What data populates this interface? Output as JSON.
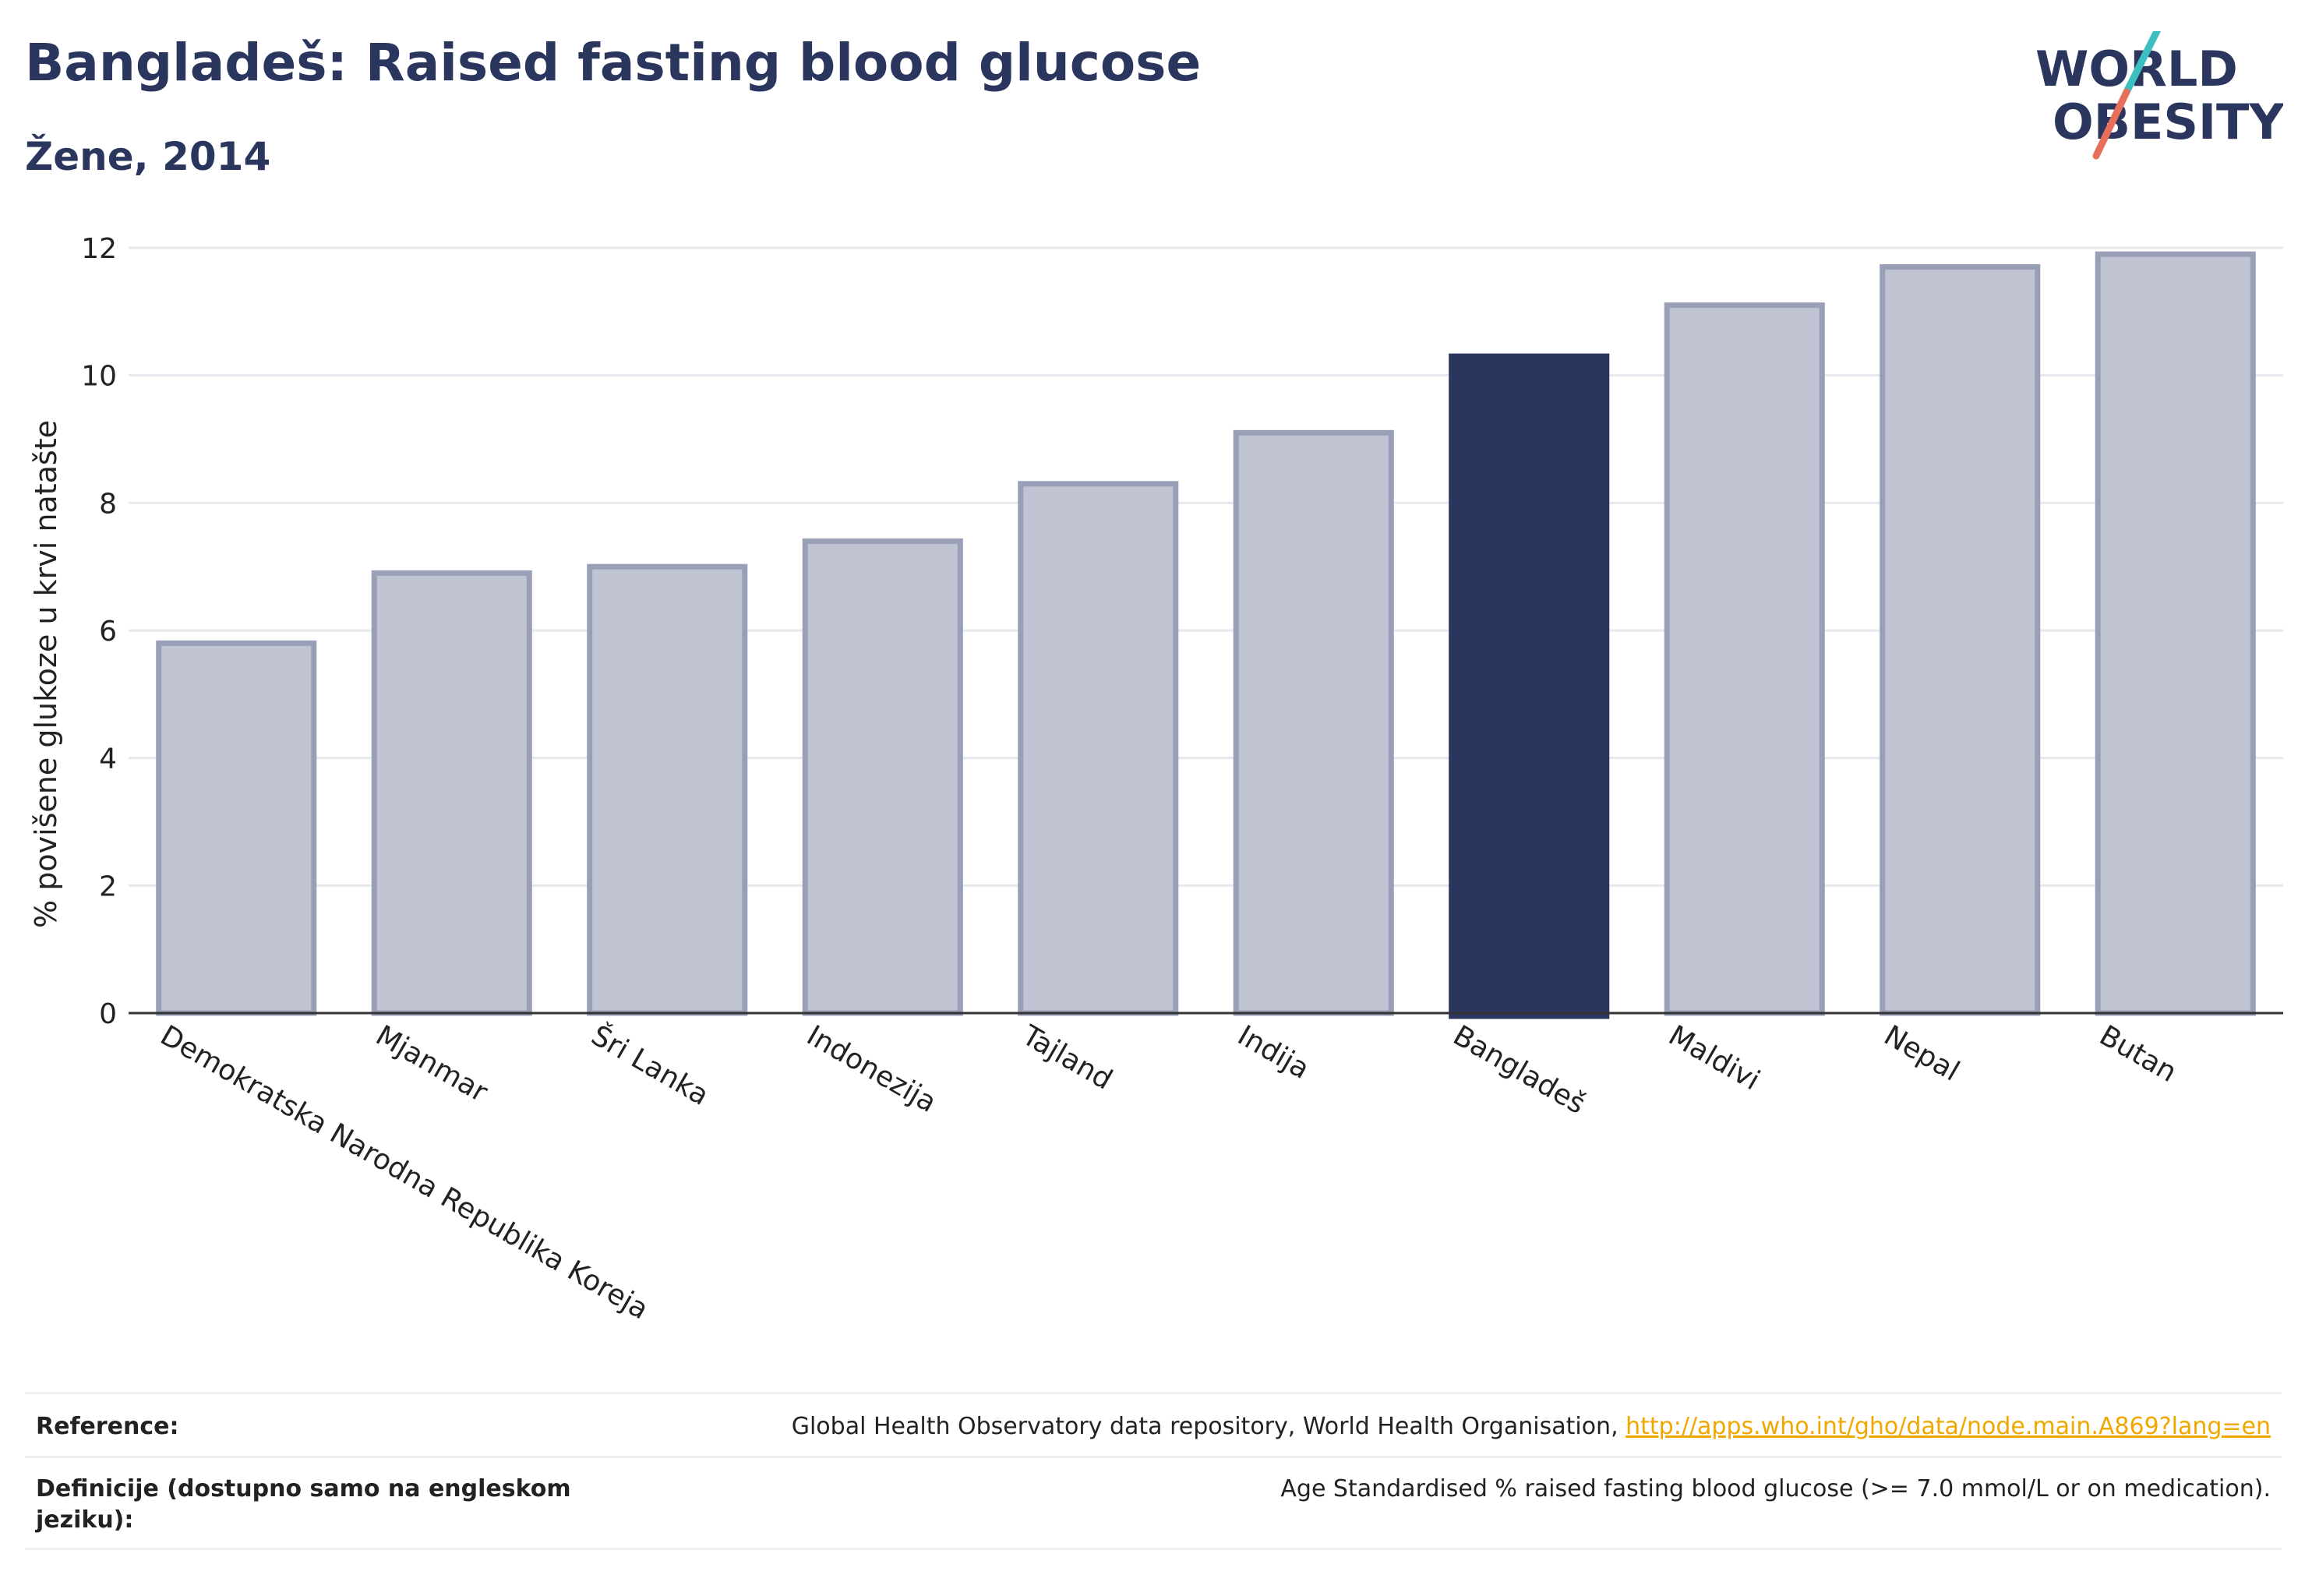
{
  "header": {
    "title": "Bangladeš: Raised fasting blood glucose",
    "subtitle": "Žene, 2014"
  },
  "logo": {
    "line1": "WORLD",
    "line2": "OBESITY",
    "alt": "World Obesity logo"
  },
  "colors": {
    "highlight": "#2b365f",
    "bar_fill": "#c0c3d1",
    "bar_stroke": "#9a9fb8",
    "grid": "#e6e8ee",
    "link": "#f0a800",
    "logo_teal": "#3bbfbf",
    "logo_coral": "#e8705a"
  },
  "chart_data": {
    "type": "bar",
    "categories": [
      "Demokratska Narodna Republika Koreja",
      "Mjanmar",
      "Šri Lanka",
      "Indonezija",
      "Tajland",
      "Indija",
      "Bangladeš",
      "Maldivi",
      "Nepal",
      "Butan"
    ],
    "values": [
      5.8,
      6.9,
      7.0,
      7.4,
      8.3,
      9.1,
      10.3,
      11.1,
      11.7,
      11.9
    ],
    "highlight": "Bangladeš",
    "ylabel": "% povišene glukoze u krvi natašte",
    "xlabel": "",
    "ylim": [
      0,
      12
    ],
    "yticks": [
      0,
      2,
      4,
      6,
      8,
      10,
      12
    ],
    "grid": true
  },
  "footer": {
    "reference_label": "Reference:",
    "reference_text": "Global Health Observatory data repository, World Health Organisation, ",
    "reference_link": "http://apps.who.int/gho/data/node.main.A869?lang=en",
    "definition_label": "Definicije (dostupno samo na engleskom jeziku):",
    "definition_text": "Age Standardised % raised fasting blood glucose (>= 7.0 mmol/L or on medication)."
  }
}
